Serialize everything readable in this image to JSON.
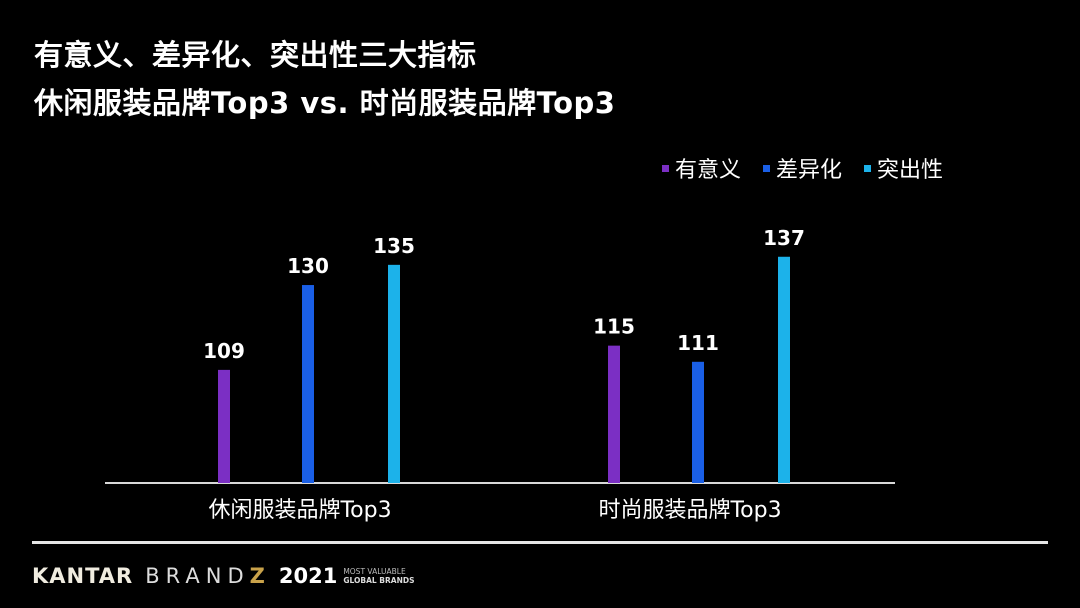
{
  "chart_data": {
    "type": "bar",
    "title": "有意义、差异化、突出性三大指标",
    "subtitle": "休闲服装品牌Top3 vs. 时尚服装品牌Top3",
    "categories": [
      "休闲服装品牌Top3",
      "时尚服装品牌Top3"
    ],
    "series": [
      {
        "name": "有意义",
        "color": "#7b2fc4",
        "values": [
          109,
          115
        ]
      },
      {
        "name": "差异化",
        "color": "#1a5fe6",
        "values": [
          130,
          111
        ]
      },
      {
        "name": "突出性",
        "color": "#1cb2ea",
        "values": [
          135,
          137
        ]
      }
    ],
    "xlabel": "",
    "ylabel": "",
    "ylim": [
      81,
      150
    ],
    "grid": false,
    "legend": "top-right",
    "data_labels": true
  },
  "footer": {
    "brand": "KANTAR",
    "product_main": "BRAND",
    "product_accent": "Z",
    "year": "2021",
    "tagline_1": "MOST VALUABLE",
    "tagline_2": "GLOBAL BRANDS"
  }
}
